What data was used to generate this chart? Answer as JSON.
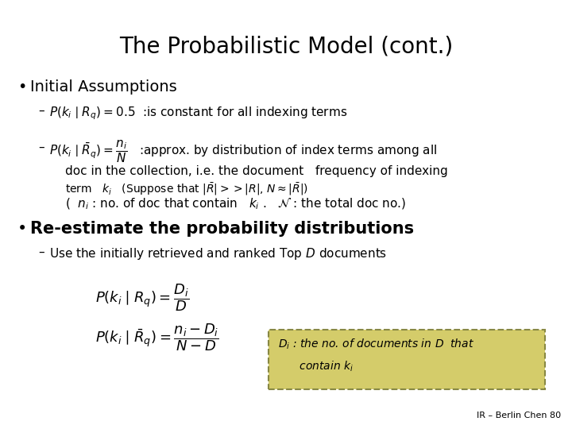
{
  "title": "The Probabilistic Model (cont.)",
  "background_color": "#ffffff",
  "title_fontsize": 20,
  "footer": "IR – Berlin Chen 80",
  "box_bg": "#d4cc6a",
  "box_border": "#888844",
  "box_text_line1": "$D_i$ : the no. of documents in $D$  that",
  "box_text_line2": "      contain $k_i$"
}
